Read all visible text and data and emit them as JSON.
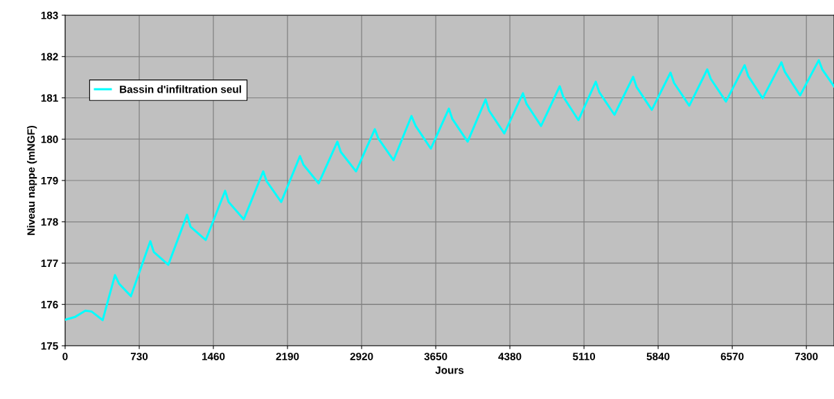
{
  "chart_data": {
    "type": "line",
    "xlabel": "Jours",
    "ylabel": "Niveau nappe (mNGF)",
    "xlim": [
      0,
      7572
    ],
    "xticks": [
      0,
      730,
      1460,
      2190,
      2920,
      3650,
      4380,
      5110,
      5840,
      6570,
      7300
    ],
    "ylim": [
      175,
      183
    ],
    "yticks": [
      175,
      176,
      177,
      178,
      179,
      180,
      181,
      182,
      183
    ],
    "grid": true,
    "legend": "top left",
    "marker": "none",
    "line_style": "solid",
    "series": [
      {
        "name": "Bassin d'infiltration seul",
        "color": "#00ffff",
        "x": [
          0,
          100,
          200,
          260,
          370,
          491,
          532,
          648,
          839,
          873,
          1016,
          1201,
          1235,
          1385,
          1576,
          1610,
          1760,
          1951,
          1985,
          2128,
          2313,
          2347,
          2497,
          2681,
          2715,
          2865,
          3050,
          3084,
          3234,
          3411,
          3452,
          3602,
          3779,
          3813,
          3964,
          4141,
          4175,
          4325,
          4509,
          4543,
          4687,
          4871,
          4905,
          5055,
          5226,
          5260,
          5410,
          5594,
          5628,
          5778,
          5962,
          5997,
          6147,
          6324,
          6358,
          6508,
          6692,
          6727,
          6870,
          7054,
          7088,
          7238,
          7422,
          7456,
          7572
        ],
        "values": [
          175.63,
          175.7,
          175.85,
          175.83,
          175.62,
          176.71,
          176.5,
          176.2,
          177.53,
          177.27,
          176.96,
          178.17,
          177.88,
          177.56,
          178.75,
          178.48,
          178.06,
          179.22,
          178.98,
          178.48,
          179.59,
          179.38,
          178.93,
          179.94,
          179.69,
          179.22,
          180.24,
          180.02,
          179.49,
          180.56,
          180.32,
          179.77,
          180.74,
          180.49,
          179.94,
          180.96,
          180.69,
          180.14,
          181.11,
          180.86,
          180.32,
          181.28,
          181.03,
          180.46,
          181.39,
          181.14,
          180.59,
          181.51,
          181.26,
          180.71,
          181.61,
          181.36,
          180.81,
          181.69,
          181.46,
          180.91,
          181.79,
          181.53,
          180.99,
          181.86,
          181.63,
          181.06,
          181.91,
          181.69,
          181.28
        ]
      }
    ]
  }
}
